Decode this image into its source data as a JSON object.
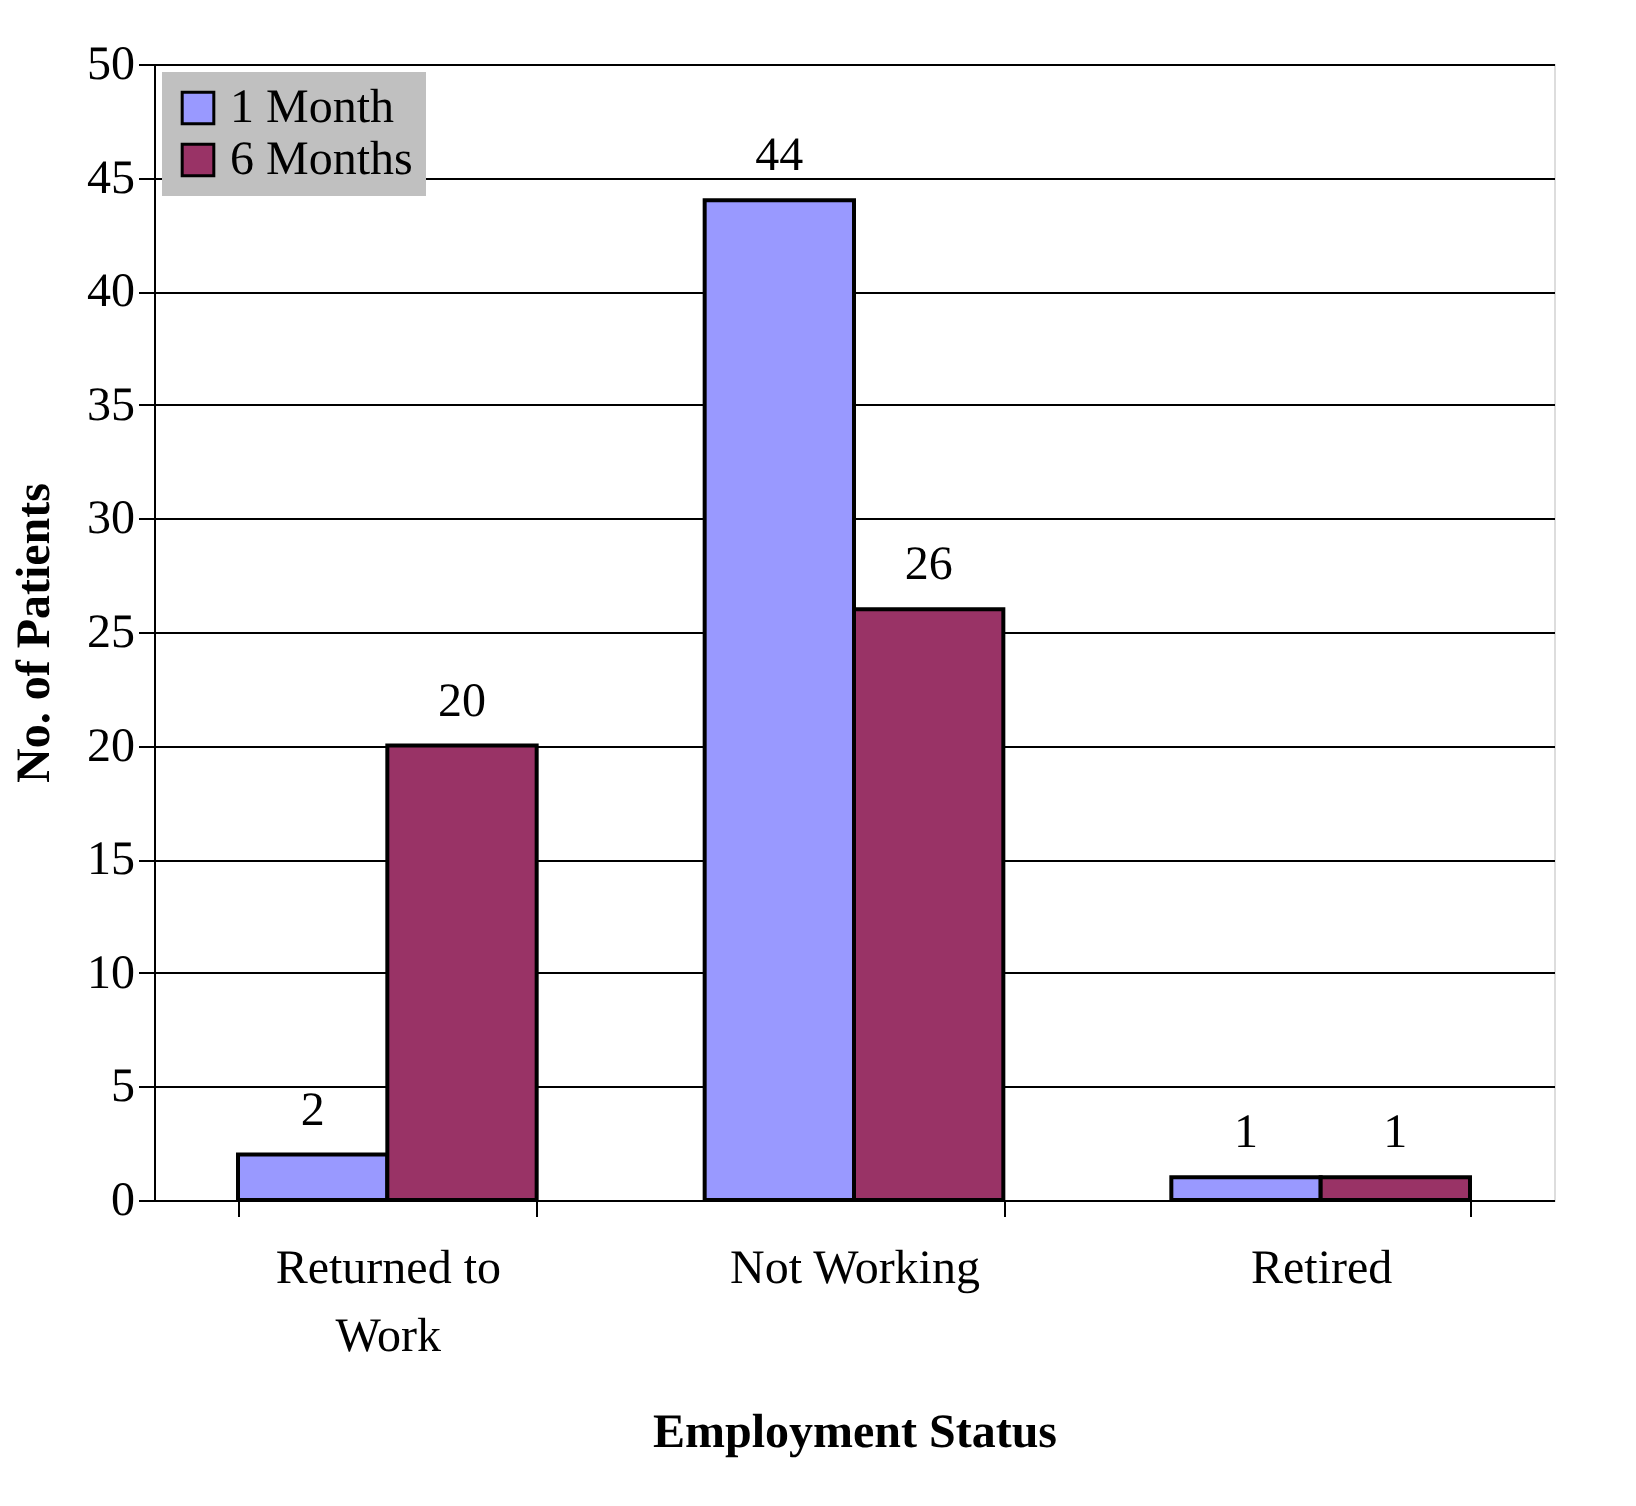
{
  "chart_data": {
    "type": "bar",
    "xlabel": "Employment Status",
    "ylabel": "No. of Patients",
    "categories": [
      "Returned to Work",
      "Not Working",
      "Retired"
    ],
    "series": [
      {
        "name": "1 Month",
        "color": "#9999ff",
        "values": [
          2,
          44,
          1
        ]
      },
      {
        "name": "6 Months",
        "color": "#993366",
        "values": [
          20,
          26,
          1
        ]
      }
    ],
    "ylim": [
      0,
      50
    ],
    "yticks": [
      0,
      5,
      10,
      15,
      20,
      25,
      30,
      35,
      40,
      45,
      50
    ],
    "grid": "y",
    "legend": "top left",
    "data_labels": true
  }
}
